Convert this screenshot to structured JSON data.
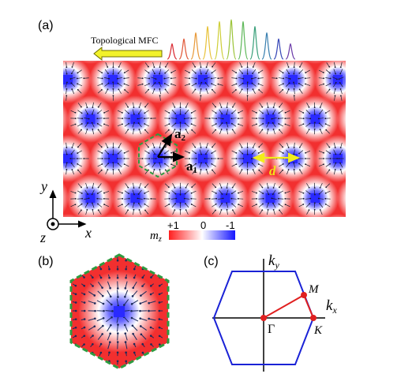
{
  "panel_labels": {
    "a": "(a)",
    "b": "(b)",
    "c": "(c)"
  },
  "comb_label": "Topological MFC",
  "lattice": {
    "a1_label": "a",
    "a1_sub": "1",
    "a2_label": "a",
    "a2_sub": "2",
    "d_label": "d"
  },
  "axes": {
    "x": "x",
    "y": "y",
    "z": "z"
  },
  "colorbar": {
    "label": "m",
    "label_sub": "z",
    "ticks": [
      "+1",
      "0",
      "-1"
    ],
    "colors": [
      "#ff1e1e",
      "#ffffff",
      "#1515ff"
    ]
  },
  "brillouin_zone": {
    "kx": "k",
    "kx_sub": "x",
    "ky": "k",
    "ky_sub": "y",
    "points": {
      "gamma": "Γ",
      "m": "M",
      "k": "K"
    }
  },
  "colors": {
    "skyrmion_bg": "#f22f2f",
    "core": "#2a2aff",
    "hex_dash": "#2e9b40",
    "bz_edge": "#1a22d6",
    "bz_path": "#e02020",
    "arrow_fill": "#f2f22a",
    "arrow_edge": "#707000",
    "d_arrow": "#f2ee1a",
    "d_text": "#f2e21a",
    "comb_colors": [
      "#d9262e",
      "#e15a3a",
      "#e89a3a",
      "#e8c23a",
      "#cfcf3a",
      "#9cc43a",
      "#5fb85a",
      "#3aa07a",
      "#3a80b0",
      "#3a4ab8",
      "#6a3aa8"
    ]
  }
}
